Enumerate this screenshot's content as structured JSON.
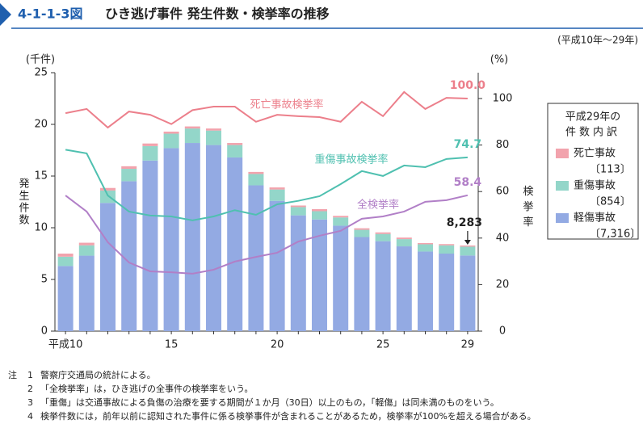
{
  "header": {
    "figure_no": "4-1-1-3図",
    "title": "ひき逃げ事件 発生件数・検挙率の推移",
    "period": "(平成10年～29年)"
  },
  "chart_data": {
    "type": "bar",
    "categories": [
      "平成10",
      null,
      null,
      null,
      null,
      "15",
      null,
      null,
      null,
      null,
      "20",
      null,
      null,
      null,
      null,
      "25",
      null,
      null,
      null,
      "29"
    ],
    "y_unit": "(千件)",
    "y_label": "発生件数",
    "y2_unit": "(%)",
    "y2_label": "検挙率",
    "ylim": [
      0,
      25
    ],
    "yticks": [
      0,
      5,
      10,
      15,
      20,
      25
    ],
    "y2lim": [
      0,
      111.1
    ],
    "y2ticks": [
      0,
      20,
      40,
      60,
      80,
      100
    ],
    "grid": false,
    "series": [
      {
        "name": "軽傷事故",
        "type": "bar",
        "color": "#93aae3",
        "legend_note": "〔7,316〕",
        "values": [
          6.3,
          7.3,
          12.4,
          14.5,
          16.5,
          17.7,
          18.2,
          18.0,
          16.8,
          14.1,
          12.6,
          11.2,
          10.8,
          10.2,
          9.1,
          8.7,
          8.2,
          7.7,
          7.5,
          7.316
        ]
      },
      {
        "name": "重傷事故",
        "type": "bar",
        "color": "#93d6c9",
        "legend_note": "〔854〕",
        "values": [
          0.9,
          1.0,
          1.2,
          1.2,
          1.4,
          1.4,
          1.4,
          1.4,
          1.2,
          1.1,
          1.1,
          0.8,
          0.8,
          0.8,
          0.7,
          0.7,
          0.7,
          0.7,
          0.8,
          0.854
        ]
      },
      {
        "name": "死亡事故",
        "type": "bar",
        "color": "#f2a3ad",
        "legend_note": "〔113〕",
        "values": [
          0.3,
          0.25,
          0.25,
          0.25,
          0.25,
          0.2,
          0.2,
          0.2,
          0.2,
          0.2,
          0.2,
          0.15,
          0.2,
          0.15,
          0.15,
          0.15,
          0.15,
          0.12,
          0.12,
          0.113
        ]
      },
      {
        "name": "死亡事故検挙率",
        "type": "line",
        "axis": "y2",
        "color": "#ec7f8b",
        "values": [
          93.7,
          95.5,
          87.5,
          94.4,
          93,
          89,
          95,
          96.5,
          96.5,
          90,
          93,
          92.4,
          92,
          90,
          98.6,
          92.4,
          102.8,
          95.5,
          100.3,
          100.0
        ],
        "value_labels": [
          null,
          null,
          null,
          null,
          null,
          null,
          null,
          null,
          null,
          null,
          null,
          null,
          null,
          null,
          null,
          null,
          null,
          null,
          null,
          "100.0"
        ]
      },
      {
        "name": "重傷事故検挙率",
        "type": "line",
        "axis": "y2",
        "color": "#4fc0b0",
        "values": [
          78,
          76.4,
          58.3,
          51.4,
          49.7,
          49.3,
          47.6,
          49.3,
          52,
          50,
          54.5,
          56,
          58,
          63.2,
          68.8,
          66.7,
          71.2,
          70.5,
          74,
          74.7
        ]
      },
      {
        "name": "全検挙率",
        "type": "line",
        "axis": "y2",
        "color": "#b17fc7",
        "values": [
          58.3,
          51.4,
          38.2,
          29.5,
          25.7,
          25.3,
          24.7,
          26.4,
          29.9,
          31.9,
          33.7,
          38.5,
          41,
          43.1,
          48.3,
          49.3,
          51.4,
          55.6,
          56.3,
          58.4
        ]
      }
    ],
    "legend_title": [
      "平成29年の",
      "件数内訳"
    ],
    "annotation": {
      "value": 8.283,
      "label": "8,283"
    }
  },
  "notes": {
    "label": "注",
    "items": [
      {
        "num": "1",
        "text": "警察庁交通局の統計による。"
      },
      {
        "num": "2",
        "text": "「全検挙率」は，ひき逃げの全事件の検挙率をいう。"
      },
      {
        "num": "3",
        "text": "「重傷」は交通事故による負傷の治療を要する期間が１か月（30日）以上のもの，「軽傷」は同未満のものをいう。"
      },
      {
        "num": "4",
        "text": "検挙件数には，前年以前に認知された事件に係る検挙事件が含まれることがあるため，検挙率が100%を超える場合がある。"
      }
    ]
  }
}
